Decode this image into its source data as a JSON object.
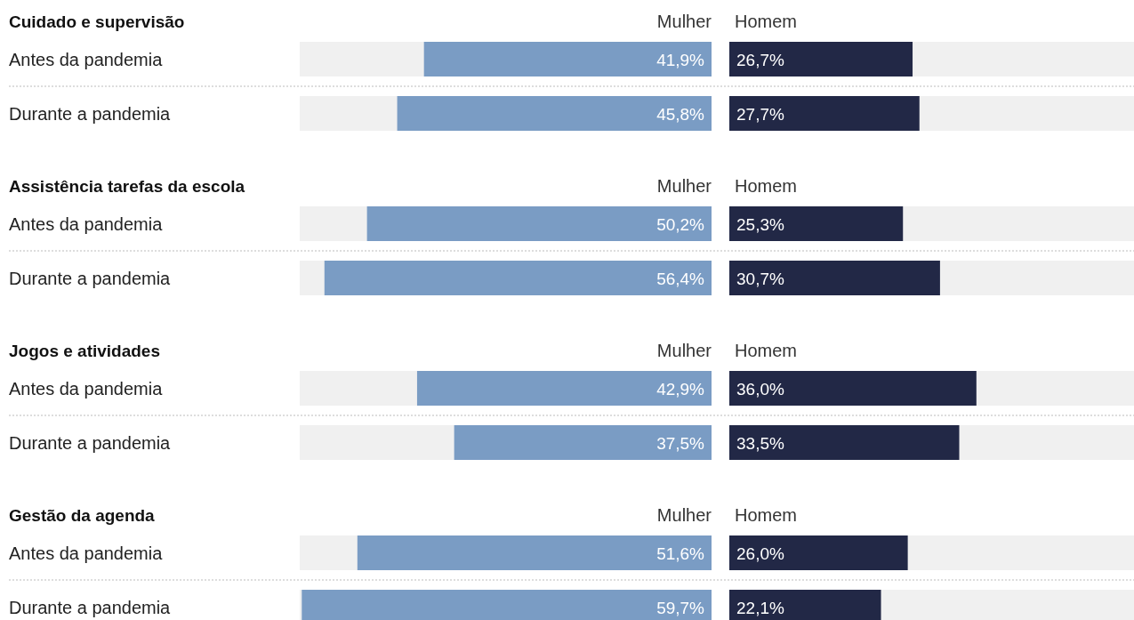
{
  "chart_data": [
    {
      "type": "bar",
      "orientation": "horizontal",
      "title": "Cuidado e supervisão",
      "categories": [
        "Antes da pandemia",
        "Durante a pandemia"
      ],
      "xlim": [
        60,
        0
      ],
      "series": [
        {
          "name": "Mulher",
          "color": "#7a9cc4",
          "values": [
            41.9,
            45.8
          ],
          "value_labels": [
            "41,9%",
            "45,8%"
          ]
        }
      ]
    },
    {
      "type": "bar",
      "orientation": "horizontal",
      "categories": [
        null,
        null
      ],
      "tick_labels": false,
      "xlim": [
        0,
        60
      ],
      "series": [
        {
          "name": "Homem",
          "color": "#222846",
          "values": [
            26.7,
            27.7
          ],
          "value_labels": [
            "26,7%",
            "27,7%"
          ]
        }
      ]
    },
    {
      "type": "bar",
      "orientation": "horizontal",
      "title": "Assistência tarefas da escola",
      "categories": [
        "Antes da pandemia",
        "Durante a pandemia"
      ],
      "xlim": [
        60,
        0
      ],
      "series": [
        {
          "name": "Mulher",
          "color": "#7a9cc4",
          "values": [
            50.2,
            56.4
          ],
          "value_labels": [
            "50,2%",
            "56,4%"
          ]
        }
      ]
    },
    {
      "type": "bar",
      "orientation": "horizontal",
      "categories": [
        null,
        null
      ],
      "tick_labels": false,
      "xlim": [
        0,
        60
      ],
      "series": [
        {
          "name": "Homem",
          "color": "#222846",
          "values": [
            25.3,
            30.7
          ],
          "value_labels": [
            "25,3%",
            "30,7%"
          ]
        }
      ]
    },
    {
      "type": "bar",
      "orientation": "horizontal",
      "title": "Jogos e atividades",
      "categories": [
        "Antes da pandemia",
        "Durante a pandemia"
      ],
      "xlim": [
        60,
        0
      ],
      "series": [
        {
          "name": "Mulher",
          "color": "#7a9cc4",
          "values": [
            42.9,
            37.5
          ],
          "value_labels": [
            "42,9%",
            "37,5%"
          ]
        }
      ]
    },
    {
      "type": "bar",
      "orientation": "horizontal",
      "categories": [
        null,
        null
      ],
      "tick_labels": false,
      "xlim": [
        0,
        60
      ],
      "series": [
        {
          "name": "Homem",
          "color": "#222846",
          "values": [
            36.0,
            33.5
          ],
          "value_labels": [
            "36,0%",
            "33,5%"
          ]
        }
      ]
    },
    {
      "type": "bar",
      "orientation": "horizontal",
      "title": "Gestão da agenda",
      "categories": [
        "Antes da pandemia",
        "Durante a pandemia"
      ],
      "xlim": [
        60,
        0
      ],
      "series": [
        {
          "name": "Mulher",
          "color": "#7a9cc4",
          "values": [
            51.6,
            59.7
          ],
          "value_labels": [
            "51,6%",
            "59,7%"
          ]
        }
      ]
    },
    {
      "type": "bar",
      "orientation": "horizontal",
      "categories": [
        null,
        null
      ],
      "tick_labels": false,
      "xlim": [
        0,
        60
      ],
      "series": [
        {
          "name": "Homem",
          "color": "#222846",
          "values": [
            26.0,
            22.1
          ],
          "value_labels": [
            "26,0%",
            "22,1%"
          ]
        }
      ]
    }
  ]
}
